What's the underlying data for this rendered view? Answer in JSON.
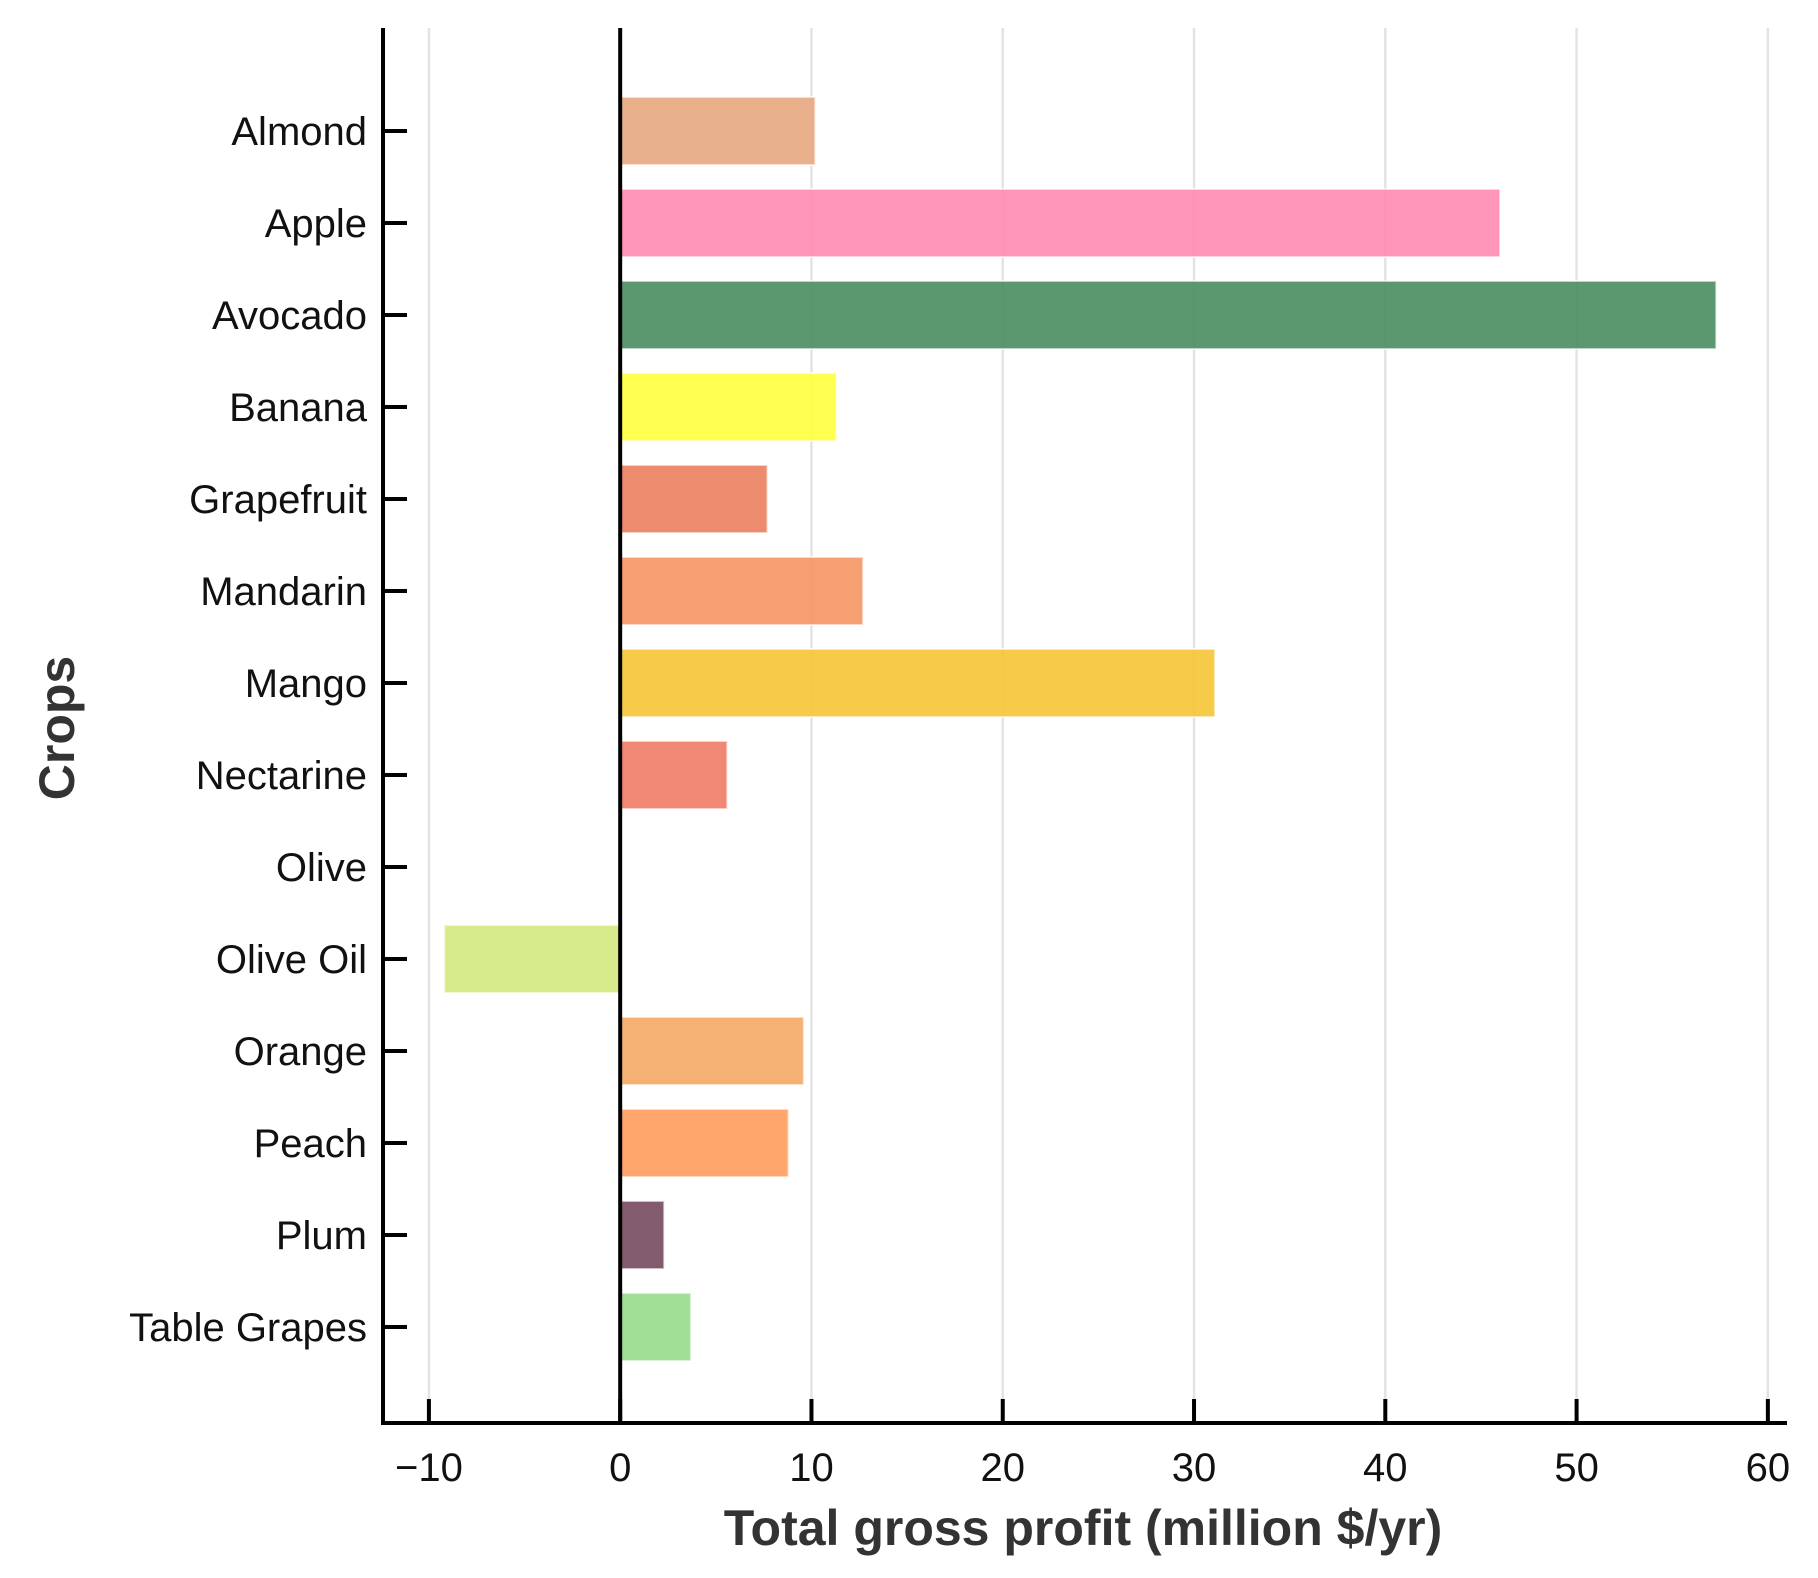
{
  "chart_data": {
    "type": "bar",
    "orientation": "horizontal",
    "xlabel": "Total gross profit (million $/yr)",
    "ylabel": "Crops",
    "xlim": [
      -12.4,
      61
    ],
    "x_ticks": [
      -10,
      0,
      10,
      20,
      30,
      40,
      50,
      60
    ],
    "x_tick_labels": [
      "−10",
      "0",
      "10",
      "20",
      "30",
      "40",
      "50",
      "60"
    ],
    "grid": "vertical",
    "categories": [
      "Almond",
      "Apple",
      "Avocado",
      "Banana",
      "Grapefruit",
      "Mandarin",
      "Mango",
      "Nectarine",
      "Olive",
      "Olive Oil",
      "Orange",
      "Peach",
      "Plum",
      "Table Grapes"
    ],
    "values": [
      10.2,
      46.0,
      57.3,
      11.3,
      7.7,
      12.7,
      31.1,
      5.6,
      0,
      -9.2,
      9.6,
      8.8,
      2.3,
      3.7
    ],
    "colors": [
      "#e6a77e",
      "#ff8bb2",
      "#4a8d5f",
      "#ffff3c",
      "#eb7e5f",
      "#f49564",
      "#f5c535",
      "#f07b66",
      "#cccccc",
      "#d3e97f",
      "#f4a864",
      "#ff9c5c",
      "#76495f",
      "#96dc8a"
    ]
  }
}
